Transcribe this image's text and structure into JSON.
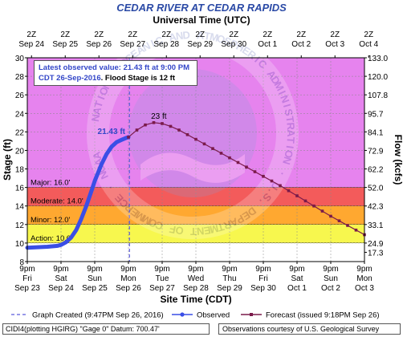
{
  "header": {
    "title": "CEDAR RIVER AT CEDAR RAPIDS",
    "subtitle": "Universal Time (UTC)"
  },
  "info_box": {
    "line1_prefix": "Latest observed value: ",
    "line1_value": "21.43 ft at 9:00 PM",
    "line2_date": "CDT 26-Sep-2016",
    "line2_flood": ". Flood Stage is 12 ft"
  },
  "footer": {
    "datum_text": "CIDI4(plotting HGIRG) \"Gage 0\" Datum: 700.47'",
    "courtesy_text": "Observations courtesy of U.S. Geological Survey"
  },
  "watermark": {
    "text": "NATIONAL OCEANIC AND ATMOSPHERIC ADMINISTRATION · U.S. DEPARTMENT OF COMMERCE · NOAA"
  },
  "chart_data": {
    "type": "line",
    "title": "CEDAR RIVER AT CEDAR RAPIDS",
    "top_axis_label": "Universal Time (UTC)",
    "xlabel": "Site Time (CDT)",
    "ylabel": "Stage (ft)",
    "y2label": "Flow (kcfs)",
    "ylim": [
      8,
      30
    ],
    "yticks": [
      8,
      10,
      12,
      14,
      16,
      18,
      20,
      22,
      24,
      26,
      28,
      30
    ],
    "flow_ticks": [
      {
        "stage": 9,
        "label": "17.3"
      },
      {
        "stage": 10,
        "label": "24.9"
      },
      {
        "stage": 12,
        "label": "33.1"
      },
      {
        "stage": 14,
        "label": "42.3"
      },
      {
        "stage": 16,
        "label": "52.0"
      },
      {
        "stage": 18,
        "label": "62.2"
      },
      {
        "stage": 20,
        "label": "72.9"
      },
      {
        "stage": 22,
        "label": "84.1"
      },
      {
        "stage": 24,
        "label": "95.7"
      },
      {
        "stage": 26,
        "label": "107.8"
      },
      {
        "stage": 28,
        "label": "120.0"
      },
      {
        "stage": 30,
        "label": "133.0"
      }
    ],
    "xlim_days": [
      0,
      10
    ],
    "top_ticks": [
      {
        "t": 0.125,
        "line1": "2Z",
        "line2": "Sep 24"
      },
      {
        "t": 1.125,
        "line1": "2Z",
        "line2": "Sep 25"
      },
      {
        "t": 2.125,
        "line1": "2Z",
        "line2": "Sep 26"
      },
      {
        "t": 3.125,
        "line1": "2Z",
        "line2": "Sep 27"
      },
      {
        "t": 4.125,
        "line1": "2Z",
        "line2": "Sep 28"
      },
      {
        "t": 5.125,
        "line1": "2Z",
        "line2": "Sep 29"
      },
      {
        "t": 6.125,
        "line1": "2Z",
        "line2": "Sep 30"
      },
      {
        "t": 7.125,
        "line1": "2Z",
        "line2": "Oct 1"
      },
      {
        "t": 8.125,
        "line1": "2Z",
        "line2": "Oct 2"
      },
      {
        "t": 9.125,
        "line1": "2Z",
        "line2": "Oct 3"
      },
      {
        "t": 10.125,
        "line1": "2Z",
        "line2": "Oct 4"
      }
    ],
    "bottom_ticks": [
      {
        "t": 0,
        "line1": "9pm",
        "line2": "Fri",
        "line3": "Sep 23"
      },
      {
        "t": 1,
        "line1": "9pm",
        "line2": "Sat",
        "line3": "Sep 24"
      },
      {
        "t": 2,
        "line1": "9pm",
        "line2": "Sun",
        "line3": "Sep 25"
      },
      {
        "t": 3,
        "line1": "9pm",
        "line2": "Mon",
        "line3": "Sep 26"
      },
      {
        "t": 4,
        "line1": "9pm",
        "line2": "Tue",
        "line3": "Sep 27"
      },
      {
        "t": 5,
        "line1": "9pm",
        "line2": "Wed",
        "line3": "Sep 28"
      },
      {
        "t": 6,
        "line1": "9pm",
        "line2": "Thu",
        "line3": "Sep 29"
      },
      {
        "t": 7,
        "line1": "9pm",
        "line2": "Fri",
        "line3": "Sep 30"
      },
      {
        "t": 8,
        "line1": "9pm",
        "line2": "Sat",
        "line3": "Oct 1"
      },
      {
        "t": 9,
        "line1": "9pm",
        "line2": "Sun",
        "line3": "Oct 2"
      },
      {
        "t": 10,
        "line1": "9pm",
        "line2": "Mon",
        "line3": "Oct 3"
      }
    ],
    "bands": [
      {
        "name": "Major",
        "label": "Major: 16.0'",
        "from": 16,
        "to": 30,
        "color": "#e683ee"
      },
      {
        "name": "Moderate",
        "label": "Moderate: 14.0'",
        "from": 14,
        "to": 16,
        "color": "#f35b5b"
      },
      {
        "name": "Minor",
        "label": "Minor: 12.0'",
        "from": 12,
        "to": 14,
        "color": "#ffa830"
      },
      {
        "name": "Action",
        "label": "Action: 10.0'",
        "from": 10,
        "to": 12,
        "color": "#f7f74e"
      },
      {
        "name": "Normal",
        "label": "",
        "from": 8,
        "to": 10,
        "color": "#ffffff"
      }
    ],
    "observed_color": "#3a4ee6",
    "forecast_color": "#7a1a4a",
    "observed": {
      "t": [
        0,
        0.3,
        0.6,
        0.9,
        1.0,
        1.15,
        1.3,
        1.45,
        1.6,
        1.75,
        1.9,
        2.0,
        2.1,
        2.2,
        2.35,
        2.5,
        2.65,
        2.8,
        2.9,
        3.0
      ],
      "stage": [
        9.5,
        9.55,
        9.6,
        9.7,
        9.8,
        10.1,
        10.6,
        11.4,
        12.6,
        14.0,
        15.6,
        16.7,
        17.6,
        18.5,
        19.6,
        20.4,
        20.9,
        21.15,
        21.3,
        21.43
      ]
    },
    "forecast": {
      "t": [
        3.0,
        3.25,
        3.5,
        3.75,
        4.0,
        4.25,
        4.5,
        4.75,
        5.0,
        5.25,
        5.5,
        5.75,
        6.0,
        6.25,
        6.5,
        6.75,
        7.0,
        7.25,
        7.5,
        7.75,
        8.0,
        8.25,
        8.5,
        8.75,
        9.0,
        9.25,
        9.5,
        9.75,
        10.0
      ],
      "stage": [
        21.43,
        22.2,
        22.75,
        23.0,
        22.9,
        22.6,
        22.2,
        21.7,
        21.2,
        20.7,
        20.2,
        19.7,
        19.2,
        18.7,
        18.2,
        17.7,
        17.2,
        16.7,
        16.2,
        15.65,
        15.1,
        14.55,
        14.0,
        13.45,
        12.9,
        12.4,
        11.9,
        11.4,
        10.9
      ]
    },
    "annotations": [
      {
        "text": "21.43 ft",
        "t": 3.0,
        "stage": 21.43,
        "color": "#3346c8"
      },
      {
        "text": "23 ft",
        "t": 3.9,
        "stage": 23.0,
        "color": "#000000"
      }
    ],
    "graph_created_t": 3.03,
    "legend": [
      {
        "name": "graph-created",
        "label": "Graph Created (9:47PM Sep 26, 2016)"
      },
      {
        "name": "observed",
        "label": "Observed"
      },
      {
        "name": "forecast",
        "label": "Forecast (issued 9:18PM Sep 26)"
      }
    ]
  }
}
